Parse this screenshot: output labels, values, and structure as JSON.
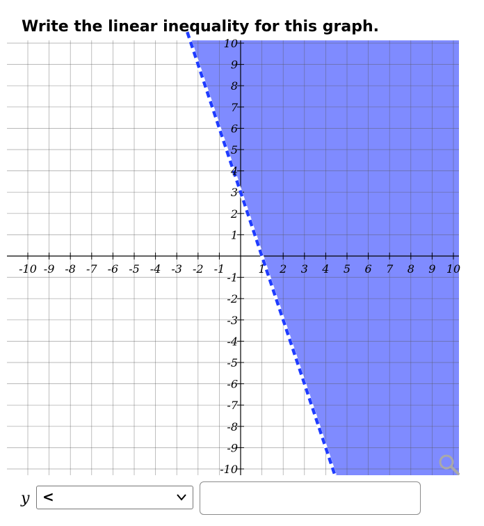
{
  "prompt": "Write the linear inequality for this graph.",
  "graph": {
    "x_ticks": [
      "-10",
      "-9",
      "-8",
      "-7",
      "-6",
      "-5",
      "-4",
      "-3",
      "-2",
      "-1",
      "1",
      "2",
      "3",
      "4",
      "5",
      "6",
      "7",
      "8",
      "9",
      "10"
    ],
    "y_ticks": [
      "10",
      "9",
      "8",
      "7",
      "6",
      "5",
      "4",
      "3",
      "2",
      "1",
      "-1",
      "-2",
      "-3",
      "-4",
      "-5",
      "-6",
      "-7",
      "-8",
      "-9",
      "-10"
    ],
    "x_range": [
      -10,
      10
    ],
    "y_range": [
      -10,
      10
    ],
    "boundary_line": {
      "slope": -3,
      "intercept": 3,
      "style": "dashed"
    },
    "shaded_region": "right-of-line",
    "grid": true,
    "shade_color": "#7f8bff",
    "line_color": "#1f3cff"
  },
  "answer": {
    "variable": "y",
    "operator_selected": "<",
    "rhs_value": ""
  },
  "icons": {
    "zoom": "magnifier-icon",
    "dropdown": "chevron-down-icon"
  }
}
